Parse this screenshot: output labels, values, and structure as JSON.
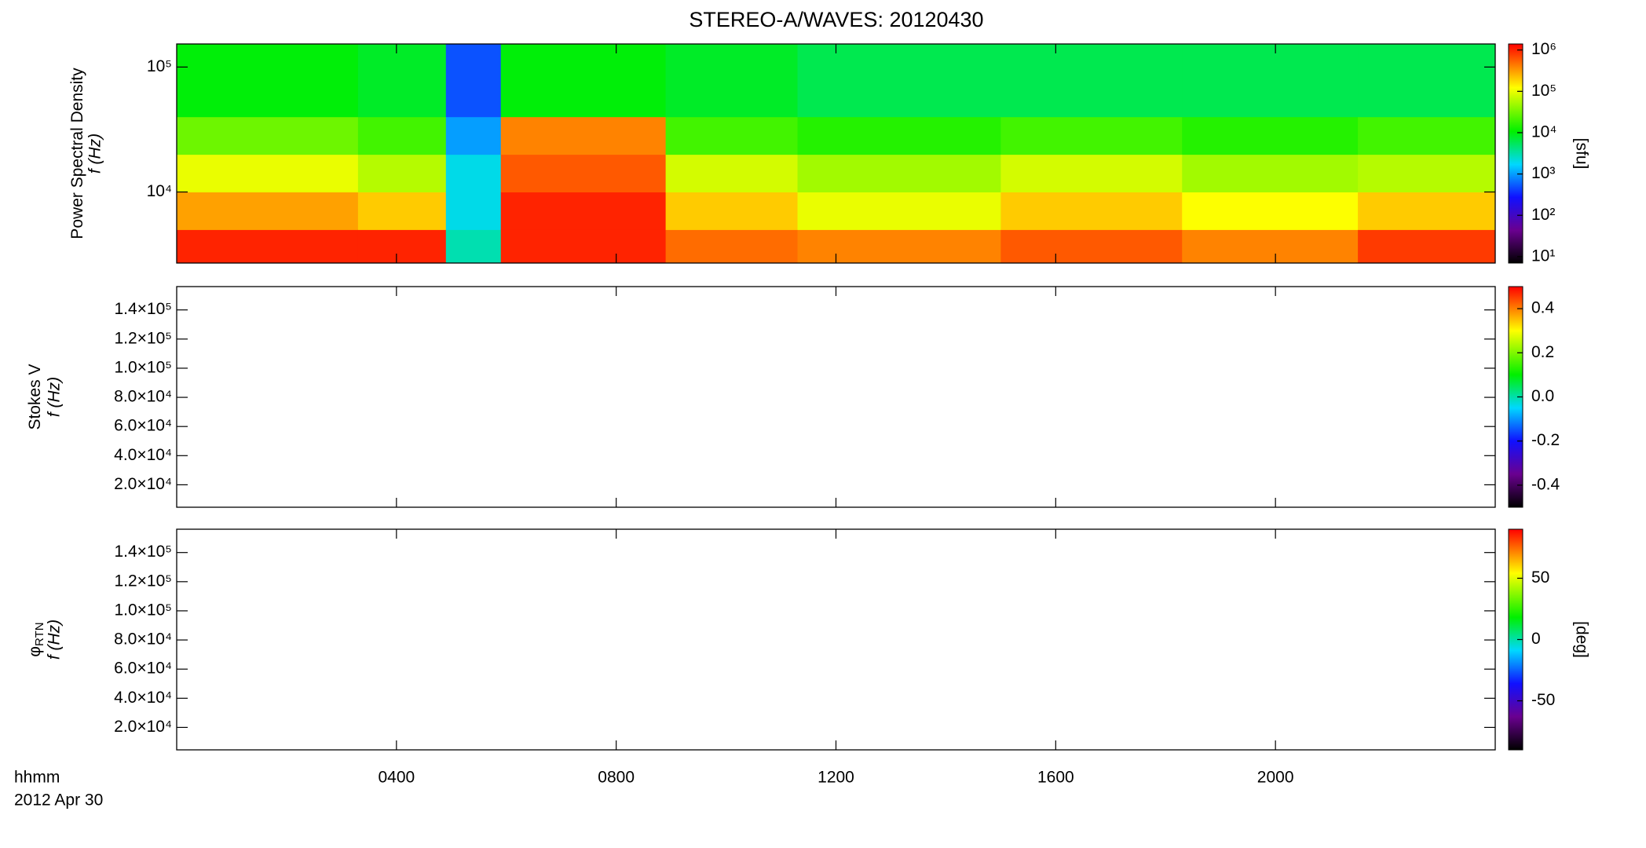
{
  "chart_data": [
    {
      "type": "heatmap",
      "title": "STEREO-A/WAVES: 20120430",
      "ylabel": "Power Spectral Density",
      "ylabel2": "f (Hz)",
      "xlim": [
        0,
        24
      ],
      "ylog": true,
      "ylim": [
        2700,
        153000
      ],
      "yticks": [
        {
          "value": 10000,
          "label": "10⁴"
        },
        {
          "value": 100000,
          "label": "10⁵"
        }
      ],
      "xbins": [
        0,
        3.3,
        4.9,
        5.9,
        8.9,
        11.3,
        15,
        18.3,
        21.5,
        24
      ],
      "ybins": [
        2700,
        5000,
        10000,
        20000,
        40000,
        153000
      ],
      "z": [
        [
          1000000,
          300000,
          100000,
          30000,
          10000
        ],
        [
          1000000,
          200000,
          60000,
          20000,
          8000
        ],
        [
          3000,
          2000,
          2000,
          1000,
          500
        ],
        [
          1000000,
          1000000,
          600000,
          400000,
          10000
        ],
        [
          500000,
          200000,
          80000,
          20000,
          8000
        ],
        [
          400000,
          100000,
          50000,
          15000,
          6000
        ],
        [
          600000,
          200000,
          80000,
          20000,
          6000
        ],
        [
          400000,
          120000,
          50000,
          15000,
          6000
        ],
        [
          800000,
          200000,
          60000,
          20000,
          6000
        ]
      ],
      "colorbar": {
        "label": "[sfu]",
        "log": true,
        "lim": [
          7,
          1400000
        ],
        "ticks": [
          {
            "value": 10,
            "label": "10¹"
          },
          {
            "value": 100,
            "label": "10²"
          },
          {
            "value": 1000,
            "label": "10³"
          },
          {
            "value": 10000,
            "label": "10⁴"
          },
          {
            "value": 100000,
            "label": "10⁵"
          },
          {
            "value": 1000000,
            "label": "10⁶"
          }
        ]
      }
    },
    {
      "type": "heatmap",
      "ylabel": "Stokes V",
      "ylabel2": "f (Hz)",
      "xlim": [
        0,
        24
      ],
      "ylim": [
        4600,
        156000
      ],
      "yticks": [
        {
          "value": 20000,
          "label": "2.0×10⁴"
        },
        {
          "value": 40000,
          "label": "4.0×10⁴"
        },
        {
          "value": 60000,
          "label": "6.0×10⁴"
        },
        {
          "value": 80000,
          "label": "8.0×10⁴"
        },
        {
          "value": 100000,
          "label": "1.0×10⁵"
        },
        {
          "value": 120000,
          "label": "1.2×10⁵"
        },
        {
          "value": 140000,
          "label": "1.4×10⁵"
        }
      ],
      "colorbar": {
        "lim": [
          -0.5,
          0.5
        ],
        "ticks": [
          -0.4,
          -0.2,
          {
            "value": 0,
            "label": "0.0"
          },
          0.2,
          0.4
        ]
      }
    },
    {
      "type": "heatmap",
      "ylabel": "φ",
      "ylabel_sub": "RTN",
      "ylabel2": "f (Hz)",
      "xlim": [
        0,
        24
      ],
      "ylim": [
        4600,
        156000
      ],
      "yticks": [
        {
          "value": 20000,
          "label": "2.0×10⁴"
        },
        {
          "value": 40000,
          "label": "4.0×10⁴"
        },
        {
          "value": 60000,
          "label": "6.0×10⁴"
        },
        {
          "value": 80000,
          "label": "8.0×10⁴"
        },
        {
          "value": 100000,
          "label": "1.0×10⁵"
        },
        {
          "value": 120000,
          "label": "1.2×10⁵"
        },
        {
          "value": 140000,
          "label": "1.4×10⁵"
        }
      ],
      "colorbar": {
        "label": "[deg]",
        "lim": [
          -90,
          90
        ],
        "ticks": [
          -50,
          0,
          50
        ]
      },
      "xticks": [
        {
          "value": 4,
          "label": "0400"
        },
        {
          "value": 8,
          "label": "0800"
        },
        {
          "value": 12,
          "label": "1200"
        },
        {
          "value": 16,
          "label": "1600"
        },
        {
          "value": 20,
          "label": "2000"
        }
      ],
      "xlabel": "hhmm",
      "date": "2012 Apr 30"
    }
  ]
}
